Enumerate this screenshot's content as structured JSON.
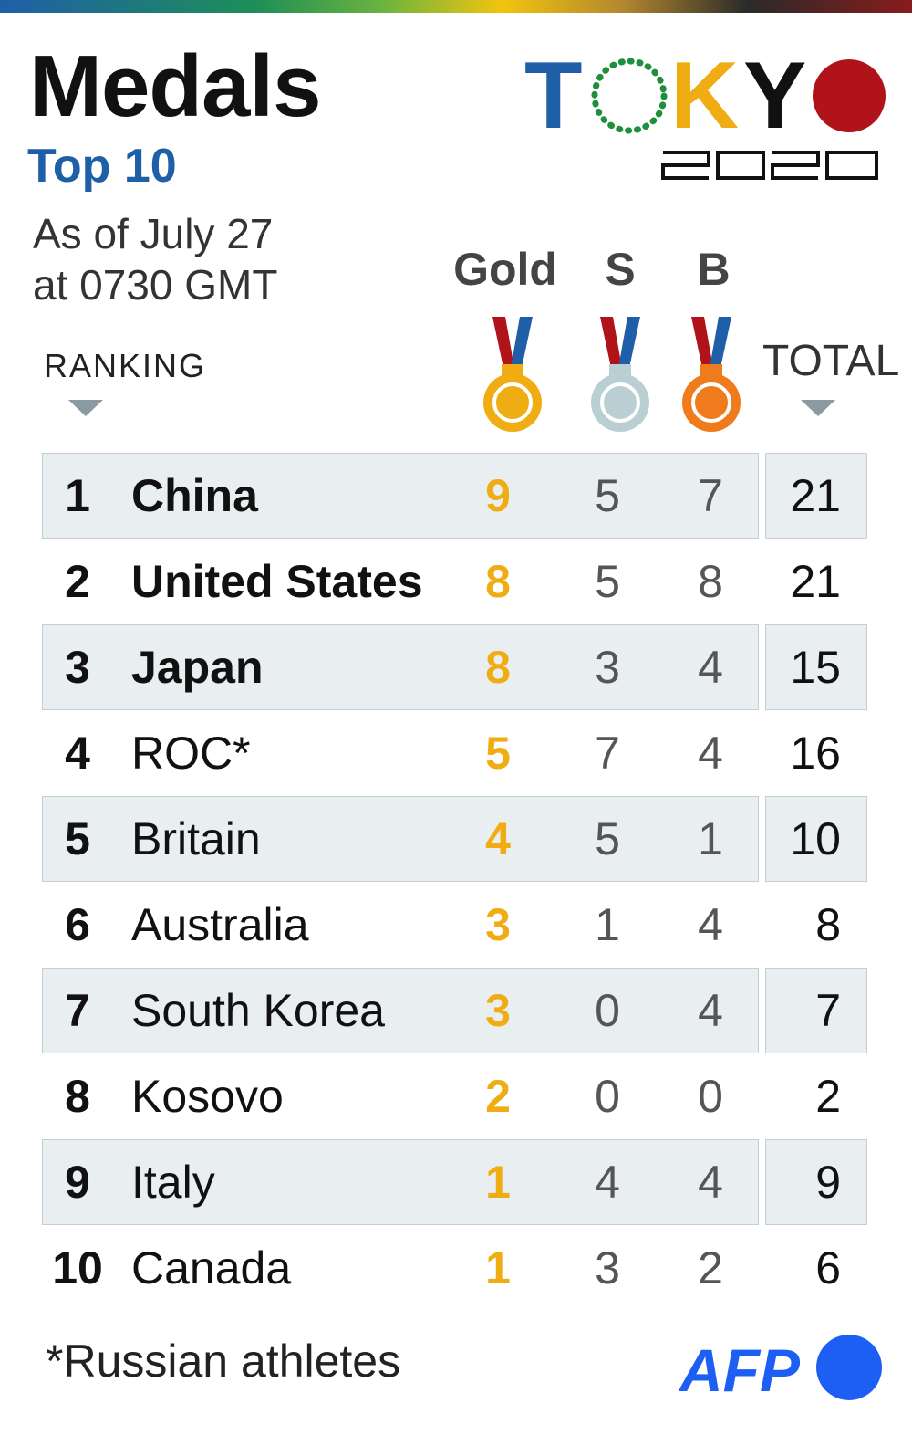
{
  "header": {
    "title": "Medals",
    "subtitle": "Top 10",
    "as_of_line1": "As of July 27",
    "as_of_line2": "at 0730 GMT"
  },
  "logo": {
    "letters": [
      "T",
      "K",
      "Y"
    ],
    "year": "2020",
    "colors": {
      "blue": "#1f5fa8",
      "green": "#1e8f3a",
      "yellow": "#f0ad13",
      "dark": "#111111",
      "red": "#b0131a"
    }
  },
  "columns": {
    "ranking": "RANKING",
    "gold": "Gold",
    "silver": "S",
    "bronze": "B",
    "total": "TOTAL"
  },
  "medal_colors": {
    "gold": "#f0ad13",
    "silver": "#b9cfd3",
    "bronze": "#ef7b1d"
  },
  "rows": [
    {
      "rank": "1",
      "country": "China",
      "gold": "9",
      "silver": "5",
      "bronze": "7",
      "total": "21"
    },
    {
      "rank": "2",
      "country": "United States",
      "gold": "8",
      "silver": "5",
      "bronze": "8",
      "total": "21"
    },
    {
      "rank": "3",
      "country": "Japan",
      "gold": "8",
      "silver": "3",
      "bronze": "4",
      "total": "15"
    },
    {
      "rank": "4",
      "country": "ROC*",
      "gold": "5",
      "silver": "7",
      "bronze": "4",
      "total": "16"
    },
    {
      "rank": "5",
      "country": "Britain",
      "gold": "4",
      "silver": "5",
      "bronze": "1",
      "total": "10"
    },
    {
      "rank": "6",
      "country": "Australia",
      "gold": "3",
      "silver": "1",
      "bronze": "4",
      "total": "8"
    },
    {
      "rank": "7",
      "country": "South Korea",
      "gold": "3",
      "silver": "0",
      "bronze": "4",
      "total": "7"
    },
    {
      "rank": "8",
      "country": "Kosovo",
      "gold": "2",
      "silver": "0",
      "bronze": "0",
      "total": "2"
    },
    {
      "rank": "9",
      "country": "Italy",
      "gold": "1",
      "silver": "4",
      "bronze": "4",
      "total": "9"
    },
    {
      "rank": "10",
      "country": "Canada",
      "gold": "1",
      "silver": "3",
      "bronze": "2",
      "total": "6"
    }
  ],
  "footer": {
    "footnote": "*Russian athletes",
    "agency": "AFP"
  }
}
